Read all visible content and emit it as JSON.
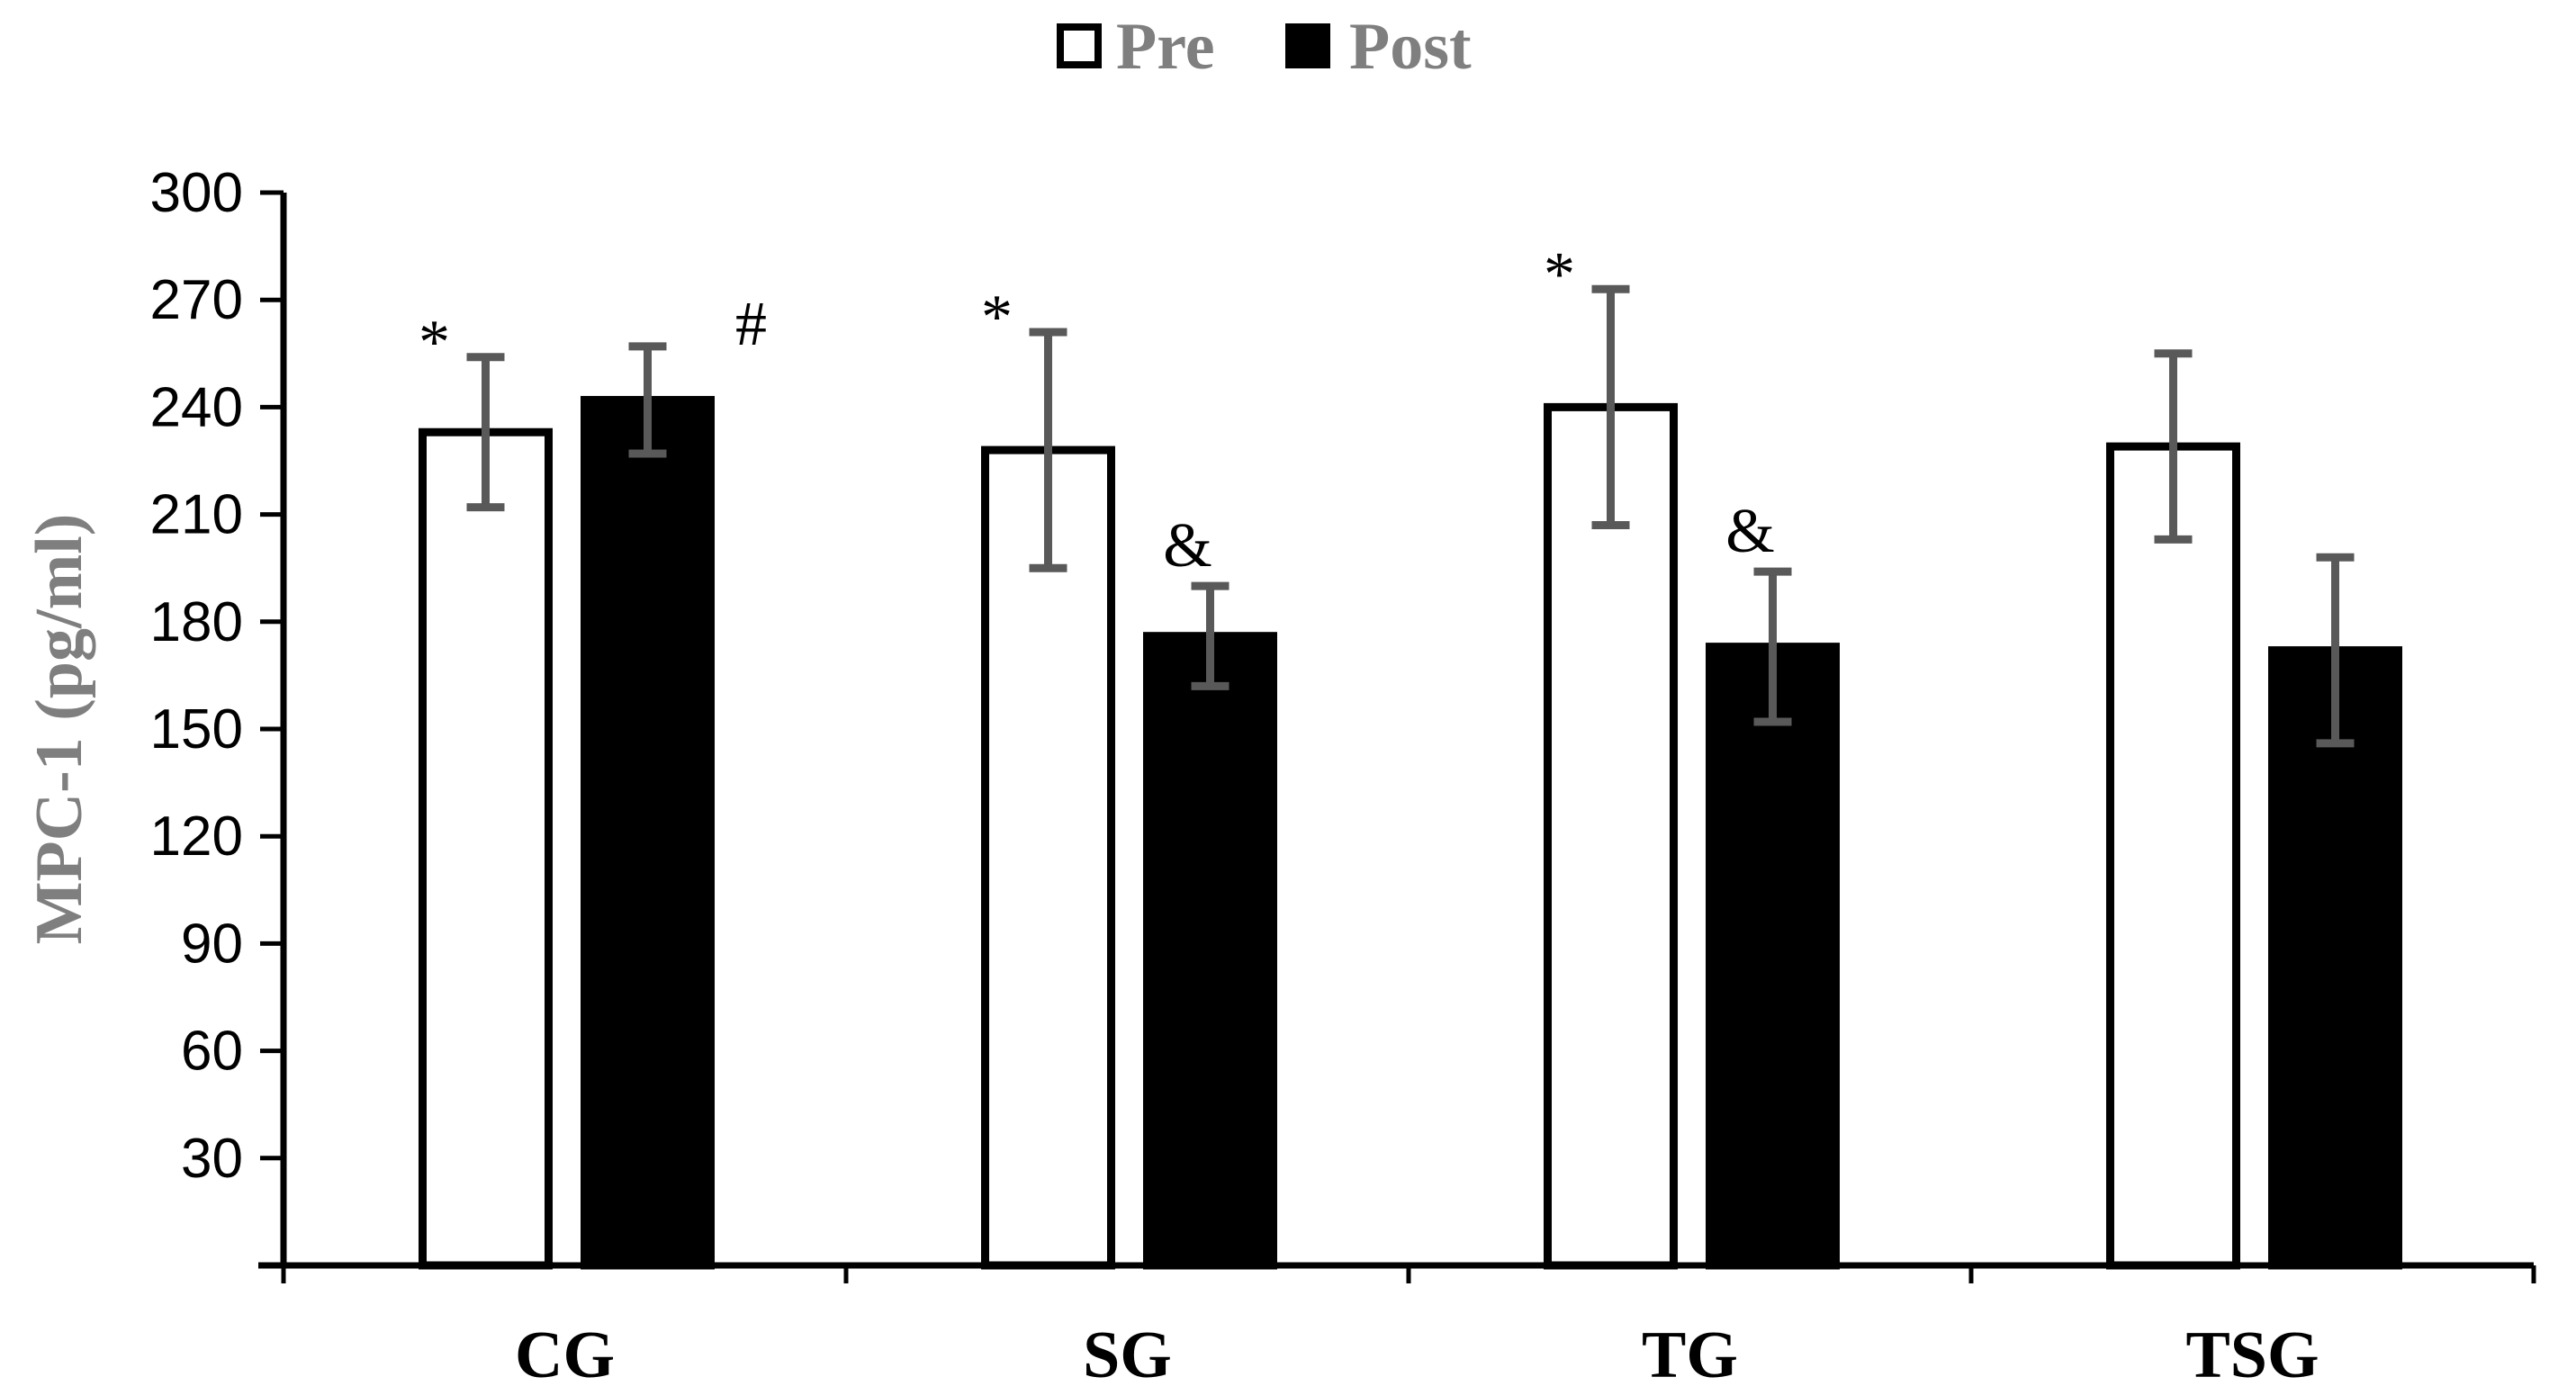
{
  "chart_data": {
    "type": "bar",
    "title": "",
    "xlabel": "",
    "ylabel": "MPC-1 (pg/ml)",
    "ylim": [
      0,
      300
    ],
    "yticks": [
      30,
      60,
      90,
      120,
      150,
      180,
      210,
      240,
      270,
      300
    ],
    "categories": [
      "CG",
      "SG",
      "TG",
      "TSG"
    ],
    "legend_position": "top-center",
    "series": [
      {
        "name": "Pre",
        "fill": "#ffffff",
        "stroke": "#000000",
        "values": [
          233,
          228,
          240,
          229
        ],
        "errors": [
          21,
          33,
          33,
          26
        ]
      },
      {
        "name": "Post",
        "fill": "#000000",
        "stroke": "#000000",
        "values": [
          242,
          176,
          173,
          172
        ],
        "errors": [
          15,
          14,
          21,
          26
        ]
      }
    ],
    "annotations": [
      {
        "category": "CG",
        "series": "Pre",
        "text": "*"
      },
      {
        "category": "CG",
        "series": "Post",
        "text": "#"
      },
      {
        "category": "SG",
        "series": "Pre",
        "text": "*"
      },
      {
        "category": "SG",
        "series": "Post",
        "text": "&"
      },
      {
        "category": "TG",
        "series": "Pre",
        "text": "*"
      },
      {
        "category": "TG",
        "series": "Post",
        "text": "&"
      }
    ],
    "colors": {
      "axis": "#000000",
      "error_bar": "#595959",
      "label_grey": "#7f7f7f"
    }
  }
}
